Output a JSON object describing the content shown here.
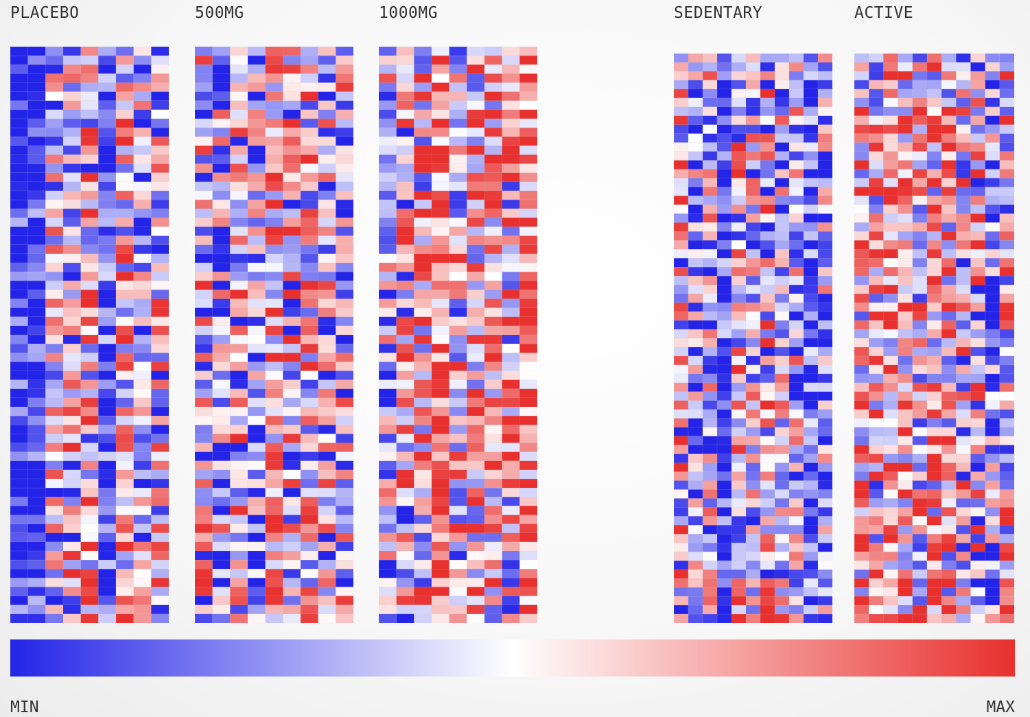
{
  "chart_data": {
    "type": "heatmap",
    "panels": [
      {
        "label": "PLACEBO",
        "columns": 9,
        "rows": 64,
        "seed": 11,
        "colBias": [
          -0.95,
          -0.9,
          -0.2,
          0.05,
          0.1,
          -0.85,
          0.2,
          -0.3,
          -0.1
        ]
      },
      {
        "label": "500MG",
        "columns": 9,
        "rows": 64,
        "seed": 23,
        "colBias": [
          0.0,
          -0.15,
          0.05,
          -0.35,
          0.35,
          0.0,
          0.15,
          -0.15,
          -0.1
        ]
      },
      {
        "label": "1000MG",
        "columns": 9,
        "rows": 64,
        "seed": 37,
        "colBias": [
          -0.2,
          0.0,
          0.15,
          0.65,
          0.1,
          0.25,
          0.2,
          0.1,
          0.6
        ]
      },
      {
        "label": "SEDENTARY",
        "columns": 11,
        "rows": 64,
        "seed": 51,
        "colBias": [
          0.05,
          -0.35,
          -0.2,
          -0.85,
          0.1,
          -0.2,
          0.0,
          -0.1,
          -0.2,
          -0.8,
          -0.3
        ]
      },
      {
        "label": "ACTIVE",
        "columns": 11,
        "rows": 64,
        "seed": 67,
        "colBias": [
          0.2,
          0.1,
          0.35,
          0.3,
          0.15,
          0.25,
          0.2,
          0.1,
          0.0,
          -0.4,
          0.1
        ]
      }
    ],
    "colorscale": {
      "low": "#2424e8",
      "mid": "#ffffff",
      "high": "#e8302e"
    },
    "legend": {
      "min_label": "MIN",
      "max_label": "MAX"
    }
  }
}
